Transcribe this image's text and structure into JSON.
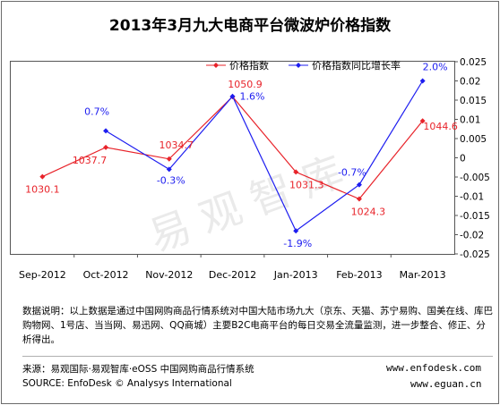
{
  "title": "2013年3月九大电商平台微波炉价格指数",
  "watermark": "易观智库",
  "chart_data": {
    "type": "line",
    "categories": [
      "Sep-2012",
      "Oct-2012",
      "Nov-2012",
      "Dec-2012",
      "Jan-2013",
      "Feb-2013",
      "Mar-2013"
    ],
    "series": [
      {
        "name": "价格指数",
        "axis": "left",
        "color": "#e8232a",
        "values": [
          1030.1,
          1037.7,
          1034.7,
          1050.9,
          1031.3,
          1024.3,
          1044.6
        ],
        "labels": [
          "1030.1",
          "1037.7",
          "1034.7",
          "1050.9",
          "1031.3",
          "1024.3",
          "1044.6"
        ]
      },
      {
        "name": "价格指数同比增长率",
        "axis": "right",
        "color": "#1d1df0",
        "values": [
          null,
          0.007,
          -0.003,
          0.016,
          -0.019,
          -0.007,
          0.02
        ],
        "labels": [
          "",
          "0.7%",
          "-0.3%",
          "1.6%",
          "-1.9%",
          "-0.7%",
          "2.0%"
        ]
      }
    ],
    "left_axis": {
      "range": [
        1010,
        1060
      ],
      "ticks": []
    },
    "right_axis": {
      "range": [
        -0.025,
        0.025
      ],
      "ticks": [
        0.025,
        0.02,
        0.015,
        0.01,
        0.005,
        0,
        -0.005,
        -0.01,
        -0.015,
        -0.02,
        -0.025
      ],
      "tick_labels": [
        "0.025",
        "0.02",
        "0.015",
        "0.01",
        "0.005",
        "0",
        "-0.005",
        "-0.01",
        "-0.015",
        "-0.02",
        "-0.025"
      ]
    },
    "legend_position": "top",
    "grid": false
  },
  "note": "数据说明：以上数据是通过中国网购商品行情系统对中国大陆市场九大（京东、天猫、苏宁易购、国美在线、库巴购物网、1号店、当当网、易迅网、QQ商城）主要B2C电商平台的每日交易全流量监测，进一步整合、修正、分析得出。",
  "source": {
    "cn": "来源：易观国际·易观智库·eOSS 中国网购商品行情系统",
    "en": "SOURCE: EnfoDesk © Analysys International",
    "url1": "www.enfodesk.com",
    "url2": "www.eguan.cn"
  }
}
